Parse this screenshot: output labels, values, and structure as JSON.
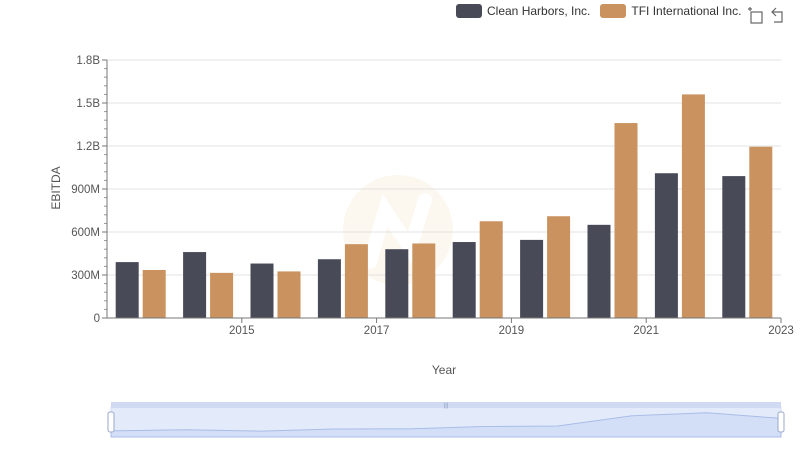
{
  "legend": {
    "items": [
      {
        "name": "Clean Harbors, Inc.",
        "color": "#484a57"
      },
      {
        "name": "TFI International Inc.",
        "color": "#c9925e"
      }
    ]
  },
  "toolbar": {
    "icons": [
      "box-zoom-icon",
      "reset-zoom-icon"
    ]
  },
  "chart_data": {
    "type": "bar",
    "x": [
      2014,
      2015,
      2016,
      2017,
      2018,
      2019,
      2020,
      2021,
      2022,
      2023
    ],
    "xticks": [
      "2015",
      "2017",
      "2019",
      "2021",
      "2023"
    ],
    "xtick_values": [
      2015,
      2017,
      2019,
      2021,
      2023
    ],
    "yticks": [
      "0",
      "300M",
      "600M",
      "900M",
      "1.2B",
      "1.5B",
      "1.8B"
    ],
    "ytick_values": [
      0,
      300000000,
      600000000,
      900000000,
      1200000000,
      1500000000,
      1800000000
    ],
    "ylim": [
      0,
      1800000000
    ],
    "xlabel": "Year",
    "ylabel": "EBITDA",
    "grid": true,
    "legend_position": "top-right",
    "series": [
      {
        "name": "Clean Harbors, Inc.",
        "color": "#484a57",
        "values": [
          390000000,
          460000000,
          380000000,
          410000000,
          480000000,
          530000000,
          545000000,
          650000000,
          1010000000,
          990000000
        ]
      },
      {
        "name": "TFI International Inc.",
        "color": "#c9925e",
        "values": [
          335000000,
          315000000,
          325000000,
          515000000,
          520000000,
          675000000,
          710000000,
          1360000000,
          1560000000,
          1195000000
        ]
      }
    ]
  }
}
